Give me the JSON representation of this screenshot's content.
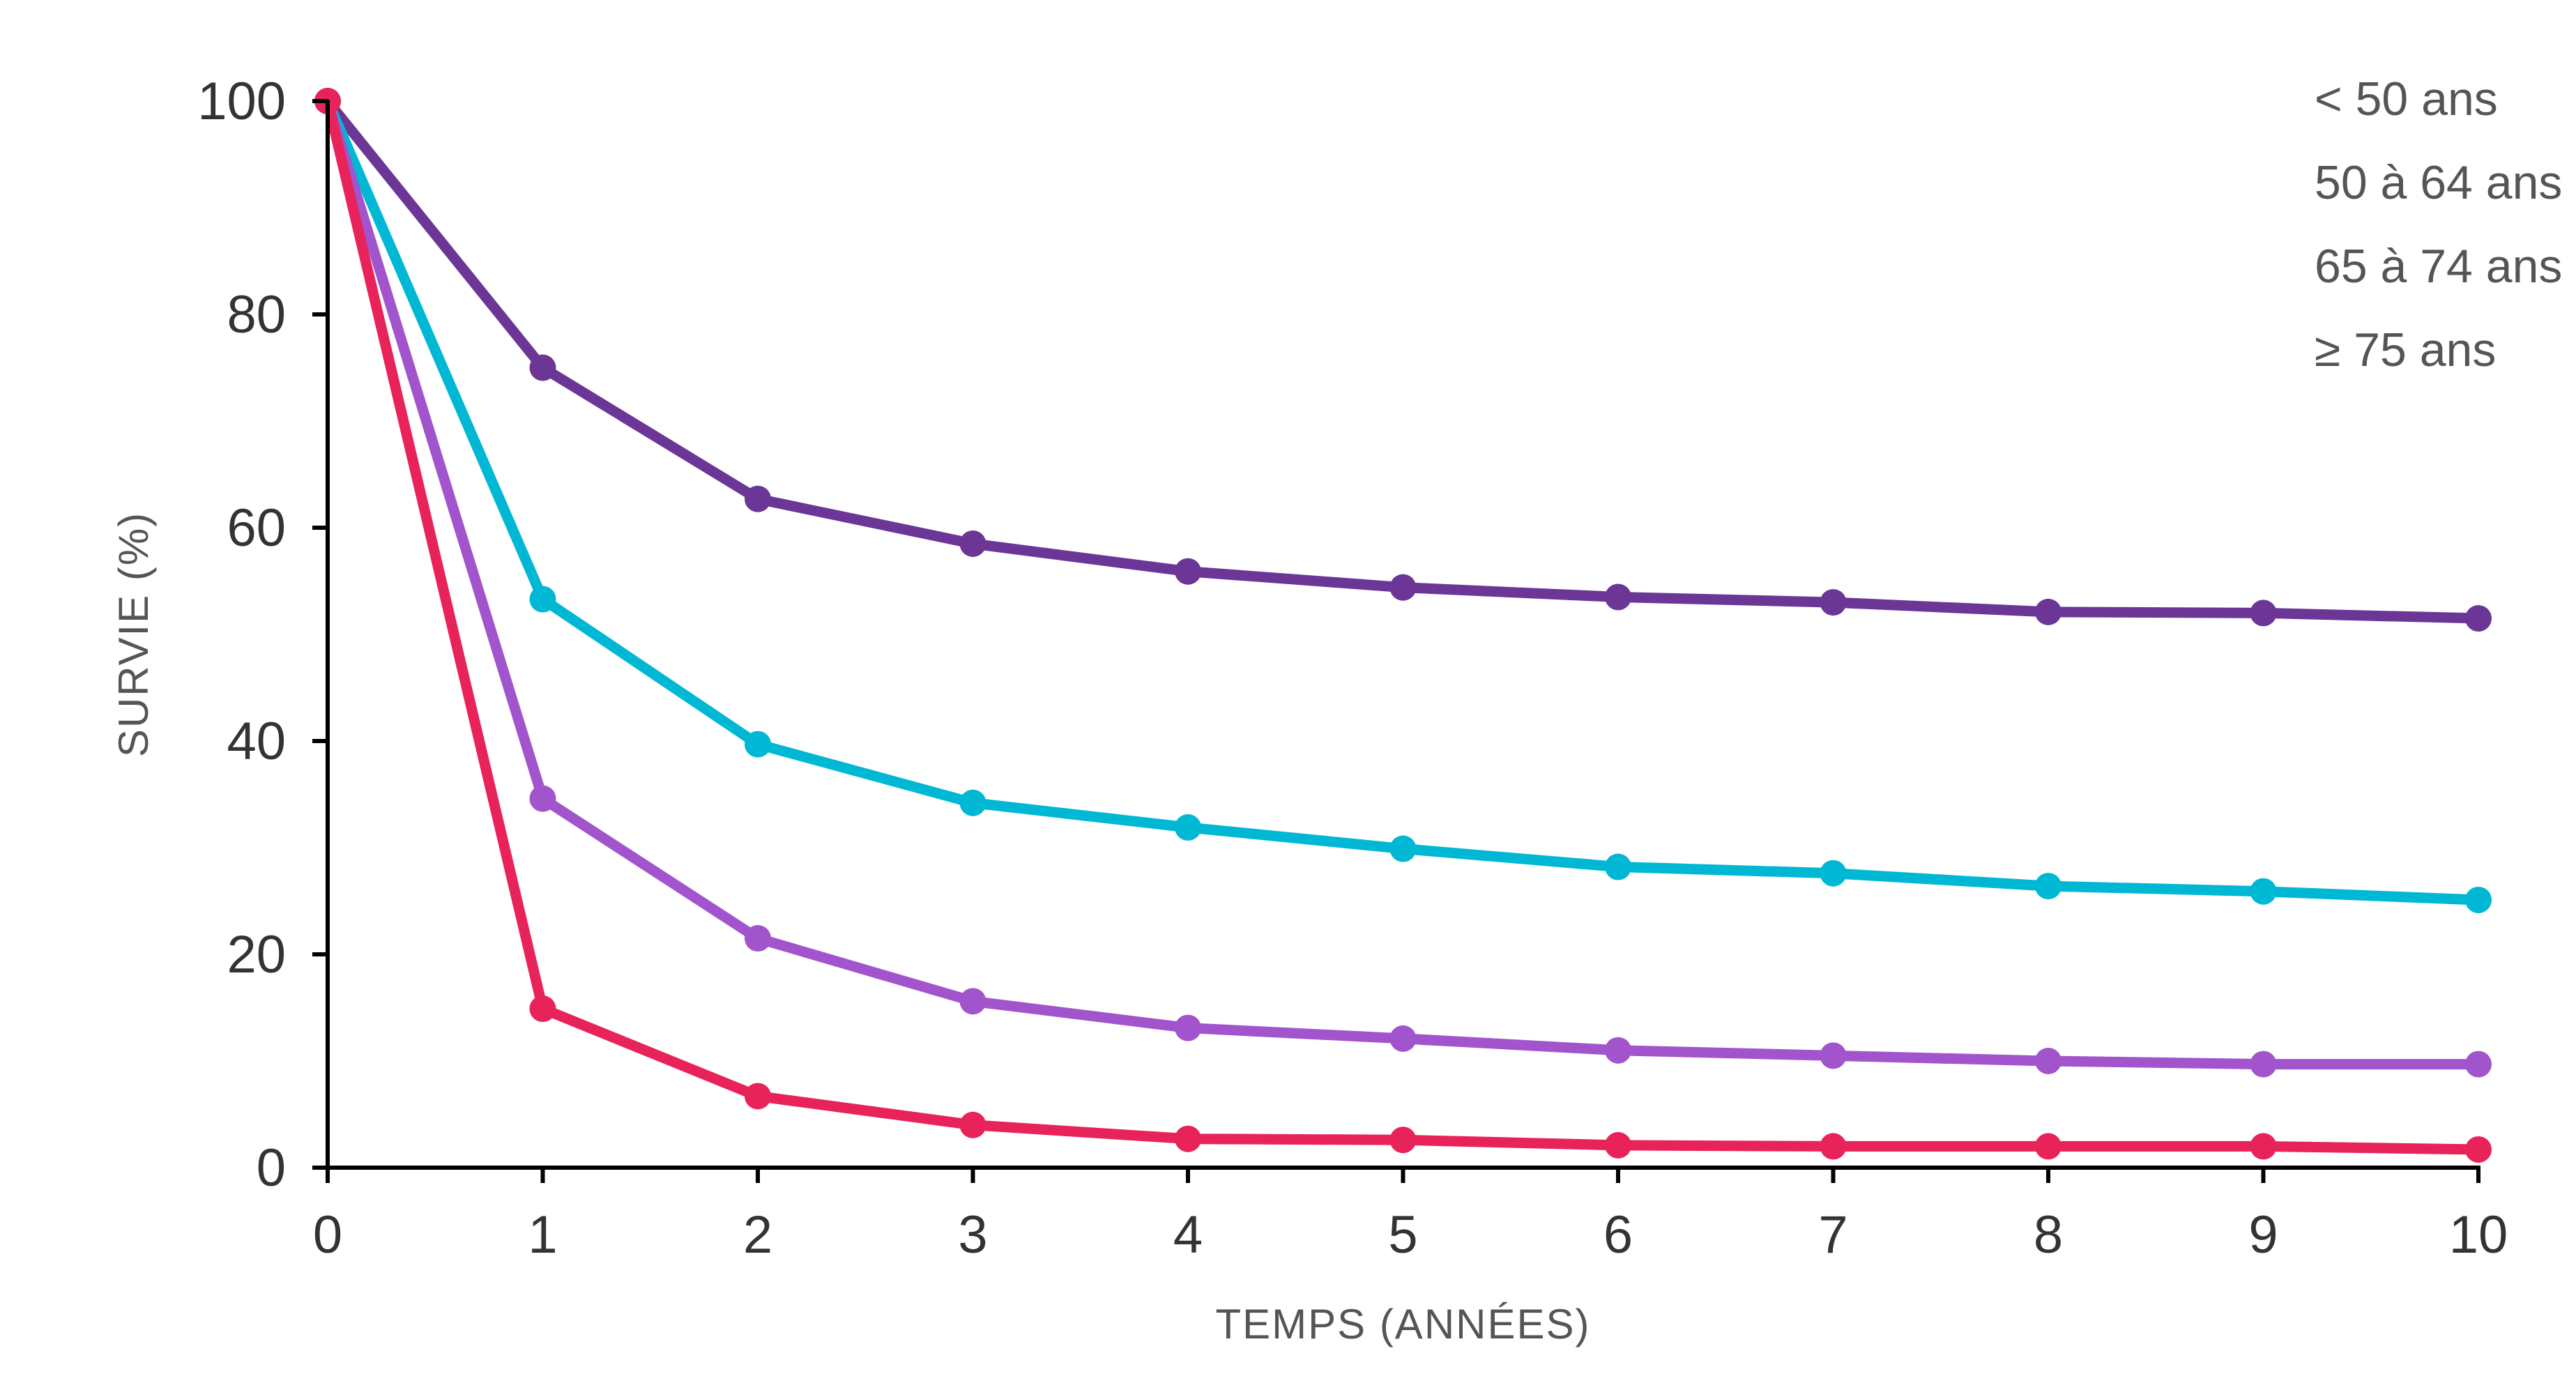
{
  "chart_data": {
    "type": "line",
    "title": "",
    "xlabel": "TEMPS (ANNÉES)",
    "ylabel": "SURVIE (%)",
    "x": [
      0,
      1,
      2,
      3,
      4,
      5,
      6,
      7,
      8,
      9,
      10
    ],
    "xlim": [
      0,
      10
    ],
    "ylim": [
      0,
      100
    ],
    "x_ticks": [
      "0",
      "1",
      "2",
      "3",
      "4",
      "5",
      "6",
      "7",
      "8",
      "9",
      "10"
    ],
    "y_ticks": [
      "0",
      "20",
      "40",
      "60",
      "80",
      "100"
    ],
    "grid": false,
    "legend_position": "top-right",
    "series": [
      {
        "name": "< 50 ans",
        "color": "#6B3696",
        "values": [
          100,
          75,
          62.7,
          58.5,
          55.9,
          54.4,
          53.5,
          53.0,
          52.1,
          52.0,
          51.5
        ]
      },
      {
        "name": "50 à 64 ans",
        "color": "#00B8D4",
        "values": [
          100,
          53.3,
          39.7,
          34.2,
          31.9,
          29.9,
          28.2,
          27.6,
          26.4,
          25.9,
          25.1
        ]
      },
      {
        "name": "65 à 74 ans",
        "color": "#A254CC",
        "values": [
          100,
          34.6,
          21.5,
          15.6,
          13.1,
          12.1,
          11.0,
          10.5,
          10.0,
          9.7,
          9.7
        ]
      },
      {
        "name": "≥ 75 ans",
        "color": "#E8235A",
        "values": [
          100,
          14.9,
          6.7,
          4.0,
          2.7,
          2.6,
          2.1,
          2.0,
          2.0,
          2.0,
          1.7
        ]
      }
    ]
  }
}
